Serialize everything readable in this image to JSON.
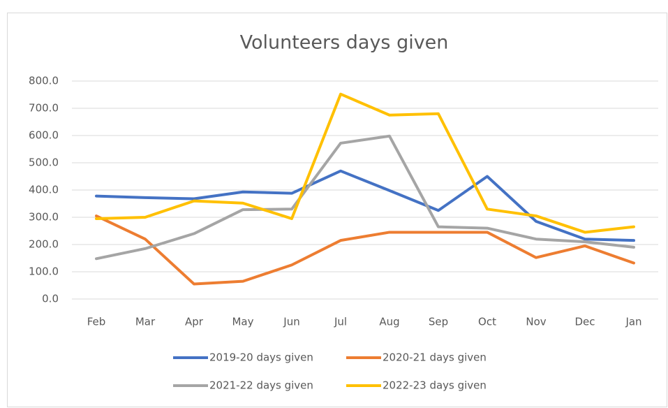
{
  "chart_data": {
    "type": "line",
    "title": "Volunteers days given",
    "categories": [
      "Feb",
      "Mar",
      "Apr",
      "May",
      "Jun",
      "Jul",
      "Aug",
      "Sep",
      "Oct",
      "Nov",
      "Dec",
      "Jan"
    ],
    "series": [
      {
        "name": "2019-20 days given",
        "color": "#4472c4",
        "values": [
          378,
          372,
          368,
          393,
          388,
          470,
          398,
          325,
          450,
          285,
          220,
          215
        ]
      },
      {
        "name": "2020-21 days given",
        "color": "#ed7d31",
        "values": [
          305,
          220,
          55,
          65,
          125,
          215,
          245,
          245,
          245,
          152,
          195,
          132
        ]
      },
      {
        "name": "2021-22 days given",
        "color": "#a5a5a5",
        "values": [
          148,
          185,
          240,
          328,
          330,
          572,
          598,
          265,
          260,
          220,
          210,
          190
        ]
      },
      {
        "name": "2022-23 days given",
        "color": "#ffc000",
        "values": [
          295,
          300,
          360,
          352,
          295,
          752,
          675,
          680,
          330,
          305,
          245,
          265
        ]
      }
    ],
    "ylim": [
      0,
      800
    ],
    "yticks": [
      {
        "value": 0,
        "label": "0.0"
      },
      {
        "value": 100,
        "label": "100.0"
      },
      {
        "value": 200,
        "label": "200.0"
      },
      {
        "value": 300,
        "label": "300.0"
      },
      {
        "value": 400,
        "label": "400.0"
      },
      {
        "value": 500,
        "label": "500.0"
      },
      {
        "value": 600,
        "label": "600.0"
      },
      {
        "value": 700,
        "label": "700.0"
      },
      {
        "value": 800,
        "label": "800.0"
      }
    ],
    "grid": true,
    "legend": "bottom"
  }
}
